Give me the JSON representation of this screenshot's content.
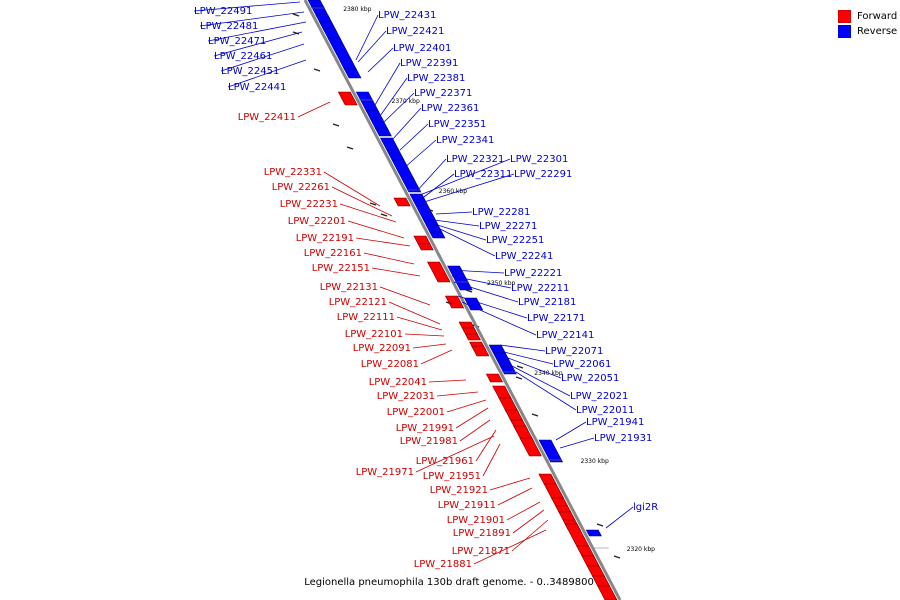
{
  "caption": "Legionella pneumophila 130b draft genome. - 0..3489800",
  "legend": {
    "items": [
      {
        "label": "Forward",
        "color": "#ff0000"
      },
      {
        "label": "Reverse",
        "color": "#0000ff"
      }
    ]
  },
  "colors": {
    "forward": "#ff0000",
    "reverse": "#0000ff",
    "backbone": "#888888",
    "forward_label": "#cc0000",
    "reverse_label": "#0000cc"
  },
  "scale_ticks": [
    "2380 kbp",
    "2370 kbp",
    "2360 kbp",
    "2350 kbp",
    "2340 kbp",
    "2330 kbp",
    "2320 kbp"
  ],
  "genes_reverse": [
    "LPW_22491",
    "LPW_22481",
    "LPW_22471",
    "LPW_22461",
    "LPW_22451",
    "LPW_22441",
    "LPW_22431",
    "LPW_22421",
    "LPW_22401",
    "LPW_22391",
    "LPW_22381",
    "LPW_22371",
    "LPW_22361",
    "LPW_22351",
    "LPW_22341",
    "LPW_22321",
    "LPW_22311",
    "LPW_22301",
    "LPW_22291",
    "LPW_22281",
    "LPW_22271",
    "LPW_22251",
    "LPW_22241",
    "LPW_22221",
    "LPW_22211",
    "LPW_22181",
    "LPW_22171",
    "LPW_22141",
    "LPW_22071",
    "LPW_22061",
    "LPW_22051",
    "LPW_22021",
    "LPW_22011",
    "LPW_21941",
    "LPW_21931",
    "lgi2R"
  ],
  "genes_forward": [
    "LPW_22411",
    "LPW_22331",
    "LPW_22261",
    "LPW_22231",
    "LPW_22201",
    "LPW_22191",
    "LPW_22161",
    "LPW_22151",
    "LPW_22131",
    "LPW_22121",
    "LPW_22111",
    "LPW_22101",
    "LPW_22091",
    "LPW_22081",
    "LPW_22041",
    "LPW_22031",
    "LPW_22001",
    "LPW_21991",
    "LPW_21981",
    "LPW_21961",
    "LPW_21971",
    "LPW_21951",
    "LPW_21921",
    "LPW_21911",
    "LPW_21901",
    "LPW_21891",
    "LPW_21871",
    "LPW_21881"
  ]
}
